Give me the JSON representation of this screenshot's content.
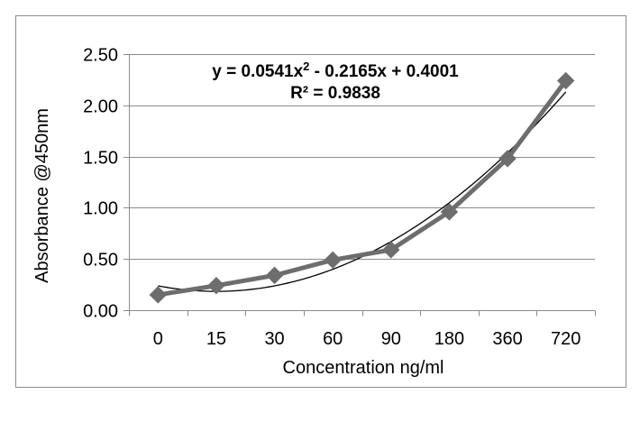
{
  "chart_data": {
    "type": "line",
    "title": "",
    "xlabel": "Concentration ng/ml",
    "ylabel": "Absorbance @450nm",
    "categories": [
      "0",
      "15",
      "30",
      "60",
      "90",
      "180",
      "360",
      "720"
    ],
    "series": [
      {
        "values": [
          0.15,
          0.24,
          0.34,
          0.49,
          0.59,
          0.96,
          1.48,
          2.24
        ],
        "color": "#6d6d6d",
        "marker": "diamond"
      }
    ],
    "trendline": {
      "type": "polynomial",
      "order": 2,
      "coefficients": [
        0.0541,
        -0.2165,
        0.4001
      ],
      "equation": "y = 0.0541x",
      "equation_exponent": "2",
      "equation_rest": " - 0.2165x + 0.4001",
      "r_squared": "R² = 0.9838",
      "color": "#000000"
    },
    "ylim": [
      0,
      2.5
    ],
    "yticks": [
      "0.00",
      "0.50",
      "1.00",
      "1.50",
      "2.00",
      "2.50"
    ],
    "ytick_values": [
      0,
      0.5,
      1.0,
      1.5,
      2.0,
      2.5
    ],
    "grid": true,
    "legend": "none"
  }
}
